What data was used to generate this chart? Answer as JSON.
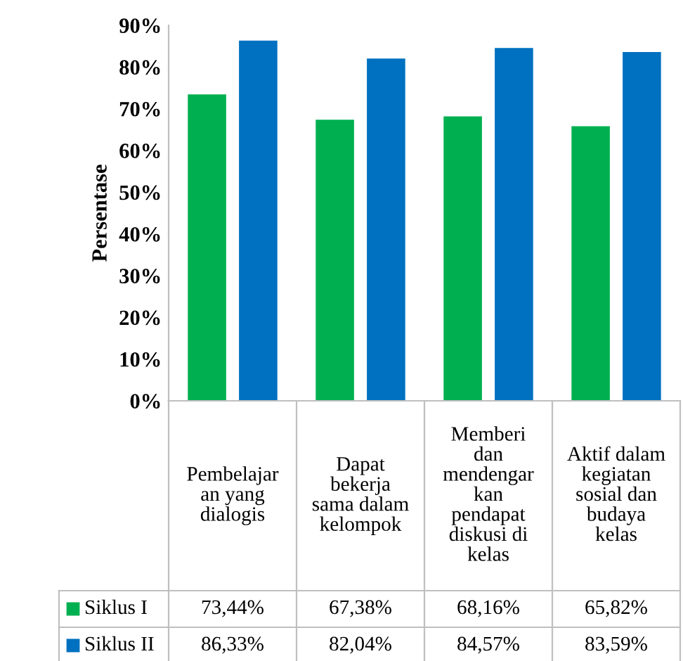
{
  "chart_data": {
    "type": "bar",
    "ylabel": "Persentase",
    "categories": [
      "Pembelajar\nan yang\ndialogis",
      "Dapat\nbekerja\nsama dalam\nkelompok",
      "Memberi\ndan\nmendengar\nkan\npendapat\ndiskusi di\nkelas",
      "Aktif dalam\nkegiatan\nsosial dan\nbudaya\nkelas"
    ],
    "series": [
      {
        "name": "Siklus I",
        "color": "#00b050",
        "values": [
          73.44,
          67.38,
          68.16,
          65.82
        ],
        "value_labels": [
          "73,44%",
          "67,38%",
          "68,16%",
          "65,82%"
        ]
      },
      {
        "name": "Siklus II",
        "color": "#0070c0",
        "values": [
          86.33,
          82.04,
          84.57,
          83.59
        ],
        "value_labels": [
          "86,33%",
          "82,04%",
          "84,57%",
          "83,59%"
        ]
      }
    ],
    "ylim": [
      0,
      90
    ],
    "yticks": [
      {
        "value": 0,
        "label": "0%"
      },
      {
        "value": 10,
        "label": "10%"
      },
      {
        "value": 20,
        "label": "20%"
      },
      {
        "value": 30,
        "label": "30%"
      },
      {
        "value": 40,
        "label": "40%"
      },
      {
        "value": 50,
        "label": "50%"
      },
      {
        "value": 60,
        "label": "60%"
      },
      {
        "value": 70,
        "label": "70%"
      },
      {
        "value": 80,
        "label": "80%"
      },
      {
        "value": 90,
        "label": "90%"
      }
    ],
    "grid": false,
    "legend": "bottom"
  }
}
